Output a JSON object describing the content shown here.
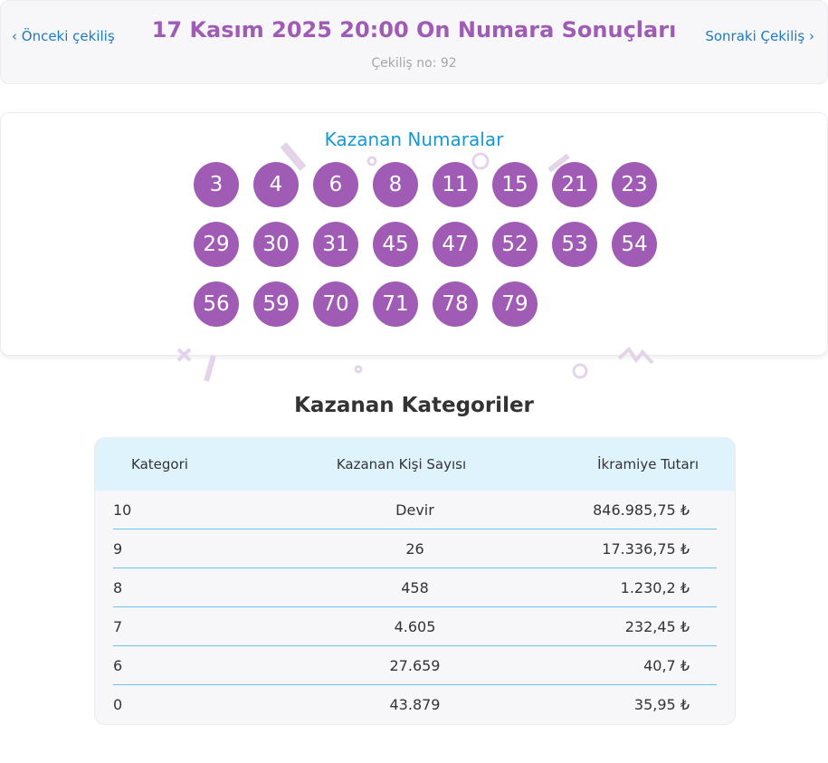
{
  "header": {
    "prev_label": "‹ Önceki çekiliş",
    "next_label": "Sonraki Çekiliş ›",
    "title": "17 Kasım 2025 20:00 On Numara Sonuçları",
    "draw_no": "Çekiliş no: 92"
  },
  "winning": {
    "title": "Kazanan Numaralar",
    "numbers": [
      "3",
      "4",
      "6",
      "8",
      "11",
      "15",
      "21",
      "23",
      "29",
      "30",
      "31",
      "45",
      "47",
      "52",
      "53",
      "54",
      "56",
      "59",
      "70",
      "71",
      "78",
      "79"
    ]
  },
  "categories": {
    "title": "Kazanan Kategoriler",
    "columns": [
      "Kategori",
      "Kazanan Kişi Sayısı",
      "İkramiye Tutarı"
    ],
    "rows": [
      [
        "10",
        "Devir",
        "846.985,75 ₺"
      ],
      [
        "9",
        "26",
        "17.336,75 ₺"
      ],
      [
        "8",
        "458",
        "1.230,2 ₺"
      ],
      [
        "7",
        "4.605",
        "232,45 ₺"
      ],
      [
        "6",
        "27.659",
        "40,7 ₺"
      ],
      [
        "0",
        "43.879",
        "35,95 ₺"
      ]
    ]
  },
  "colors": {
    "accent": "#a05cb5",
    "link": "#1c7bc0",
    "subtitle": "#1399d6",
    "table_header": "#dff3fd",
    "row_divider": "#6cc0ee"
  }
}
